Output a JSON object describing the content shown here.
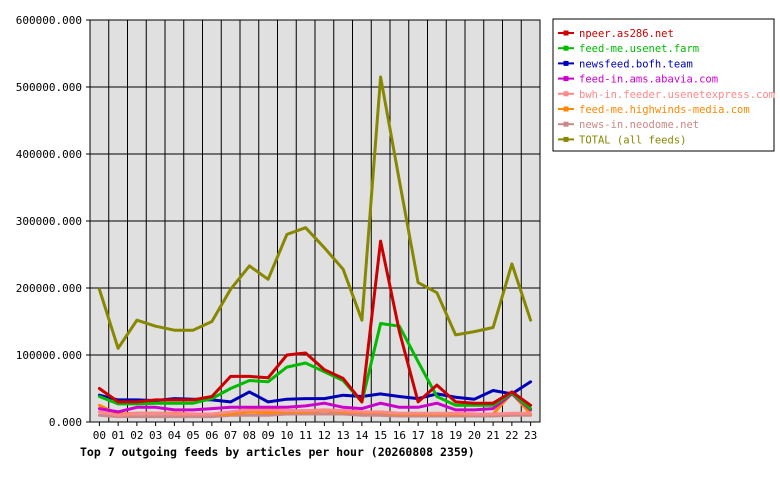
{
  "chart_data": {
    "type": "line",
    "title": "Top 7 outgoing feeds by articles per hour (20260808 2359)",
    "xlabel": "",
    "ylabel": "",
    "categories": [
      "00",
      "01",
      "02",
      "03",
      "04",
      "05",
      "06",
      "07",
      "08",
      "09",
      "10",
      "11",
      "12",
      "13",
      "14",
      "15",
      "16",
      "17",
      "18",
      "19",
      "20",
      "21",
      "22",
      "23"
    ],
    "ylim": [
      0,
      600000
    ],
    "yticks": [
      0,
      100000,
      200000,
      300000,
      400000,
      500000,
      600000
    ],
    "ytick_labels": [
      "0.000",
      "100000.000",
      "200000.000",
      "300000.000",
      "400000.000",
      "500000.000",
      "600000.000"
    ],
    "grid": true,
    "legend_position": "top-right",
    "plot_background": "#e0e0e0",
    "series": [
      {
        "name": "npeer.as286.net",
        "color": "#cc0000",
        "values": [
          50000,
          30000,
          30000,
          33000,
          33000,
          33000,
          38000,
          68000,
          68000,
          66000,
          100000,
          103000,
          78000,
          65000,
          30000,
          270000,
          135000,
          30000,
          55000,
          30000,
          28000,
          28000,
          45000,
          25000
        ]
      },
      {
        "name": "feed-me.usenet.farm",
        "color": "#00bb00",
        "values": [
          38000,
          27000,
          27000,
          28000,
          28000,
          28000,
          35000,
          50000,
          62000,
          60000,
          82000,
          88000,
          75000,
          62000,
          30000,
          147000,
          143000,
          90000,
          38000,
          25000,
          25000,
          25000,
          43000,
          20000
        ]
      },
      {
        "name": "newsfeed.bofh.team",
        "color": "#0000bb",
        "values": [
          40000,
          33000,
          33000,
          32000,
          35000,
          34000,
          33000,
          30000,
          45000,
          30000,
          34000,
          35000,
          35000,
          40000,
          38000,
          42000,
          38000,
          35000,
          42000,
          37000,
          34000,
          47000,
          42000,
          60000
        ]
      },
      {
        "name": "feed-in.ams.abavia.com",
        "color": "#cc00cc",
        "values": [
          20000,
          15000,
          22000,
          22000,
          18000,
          18000,
          20000,
          22000,
          22000,
          22000,
          22000,
          24000,
          28000,
          22000,
          20000,
          28000,
          22000,
          22000,
          28000,
          18000,
          18000,
          20000,
          42000,
          18000
        ]
      },
      {
        "name": "bwh-in.feeder.usenetexpress.com",
        "color": "#ff8888",
        "values": [
          15000,
          10000,
          13000,
          13000,
          12000,
          12000,
          12000,
          15000,
          18000,
          18000,
          17000,
          17000,
          18000,
          17000,
          15000,
          15000,
          13000,
          13000,
          13000,
          13000,
          12000,
          12000,
          13000,
          13000
        ]
      },
      {
        "name": "feed-me.highwinds-media.com",
        "color": "#ff8800",
        "values": [
          25000,
          12000,
          13000,
          13000,
          13000,
          12000,
          12000,
          12000,
          15000,
          14000,
          15000,
          15000,
          17000,
          15000,
          14000,
          14000,
          12000,
          12000,
          12000,
          12000,
          12000,
          12000,
          43000,
          12000
        ]
      },
      {
        "name": "news-in.neodome.net",
        "color": "#cc8888",
        "values": [
          10000,
          8000,
          8000,
          8000,
          8000,
          8000,
          8000,
          10000,
          10000,
          10000,
          12000,
          12000,
          12000,
          12000,
          10000,
          10000,
          9000,
          9000,
          9000,
          9000,
          9000,
          9000,
          10000,
          10000
        ]
      },
      {
        "name": "TOTAL (all feeds)",
        "color": "#888800",
        "values": [
          198000,
          110000,
          152000,
          143000,
          137000,
          137000,
          150000,
          198000,
          233000,
          213000,
          280000,
          290000,
          260000,
          228000,
          152000,
          515000,
          360000,
          208000,
          193000,
          130000,
          135000,
          141000,
          236000,
          152000
        ]
      }
    ]
  }
}
